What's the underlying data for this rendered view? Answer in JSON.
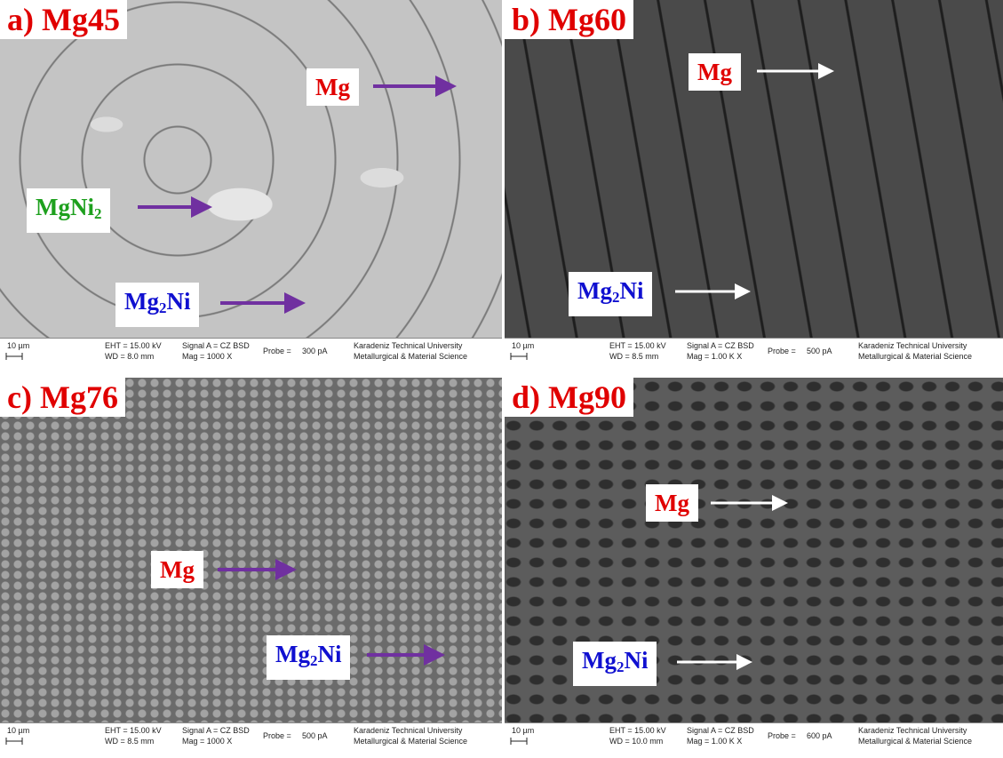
{
  "panels": [
    {
      "title": "a) Mg45",
      "labels": [
        {
          "parts": [
            {
              "text": "Mg"
            }
          ]
        },
        {
          "parts": [
            {
              "text": "MgNi"
            },
            {
              "sub": "2"
            }
          ]
        },
        {
          "parts": [
            {
              "text": "Mg"
            },
            {
              "sub": "2"
            },
            {
              "text": "Ni"
            }
          ]
        }
      ],
      "info": {
        "scale": "10 µm",
        "eht": "EHT = 15.00 kV",
        "wd": "WD = 8.0 mm",
        "signal": "Signal A = CZ BSD",
        "mag": "Mag = 1000 X",
        "probe": "Probe =",
        "current": "300 pA",
        "university": "Karadeniz Technical University",
        "department": "Metallurgical & Material Science"
      }
    },
    {
      "title": "b) Mg60",
      "labels": [
        {
          "parts": [
            {
              "text": "Mg"
            }
          ]
        },
        {
          "parts": [
            {
              "text": "Mg"
            },
            {
              "sub": "2"
            },
            {
              "text": "Ni"
            }
          ]
        }
      ],
      "info": {
        "scale": "10 µm",
        "eht": "EHT = 15.00 kV",
        "wd": "WD = 8.5 mm",
        "signal": "Signal A = CZ BSD",
        "mag": "Mag = 1.00 K X",
        "probe": "Probe =",
        "current": "500 pA",
        "university": "Karadeniz Technical University",
        "department": "Metallurgical & Material Science"
      }
    },
    {
      "title": "c) Mg76",
      "labels": [
        {
          "parts": [
            {
              "text": "Mg"
            }
          ]
        },
        {
          "parts": [
            {
              "text": "Mg"
            },
            {
              "sub": "2"
            },
            {
              "text": "Ni"
            }
          ]
        }
      ],
      "info": {
        "scale": "10 µm",
        "eht": "EHT = 15.00 kV",
        "wd": "WD = 8.5 mm",
        "signal": "Signal A = CZ BSD",
        "mag": "Mag = 1000 X",
        "probe": "Probe =",
        "current": "500 pA",
        "university": "Karadeniz Technical University",
        "department": "Metallurgical & Material Science"
      }
    },
    {
      "title": "d) Mg90",
      "labels": [
        {
          "parts": [
            {
              "text": "Mg"
            }
          ]
        },
        {
          "parts": [
            {
              "text": "Mg"
            },
            {
              "sub": "2"
            },
            {
              "text": "Ni"
            }
          ]
        }
      ],
      "info": {
        "scale": "10 µm",
        "eht": "EHT = 15.00 kV",
        "wd": "WD = 10.0 mm",
        "signal": "Signal A = CZ BSD",
        "mag": "Mag = 1.00 K X",
        "probe": "Probe =",
        "current": "600 pA",
        "university": "Karadeniz Technical University",
        "department": "Metallurgical & Material Science"
      }
    }
  ]
}
